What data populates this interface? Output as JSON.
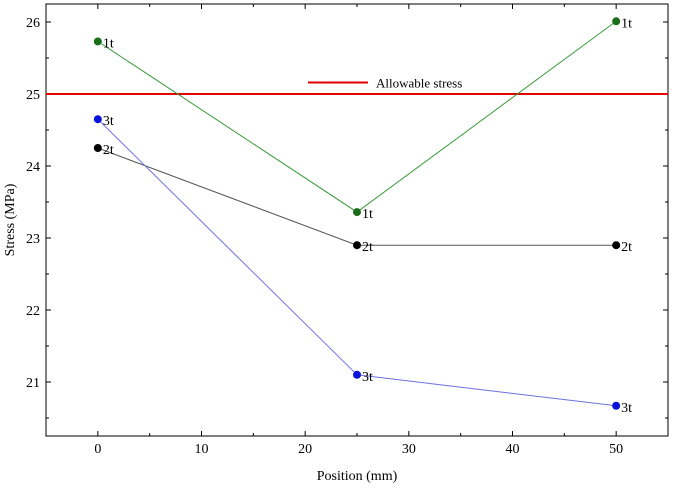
{
  "chart_data": {
    "type": "line",
    "title": "",
    "xlabel": "Position (mm)",
    "ylabel": "Stress (MPa)",
    "xlim": [
      -5,
      55
    ],
    "ylim": [
      20.25,
      26.25
    ],
    "x_ticks": [
      0,
      10,
      20,
      30,
      40,
      50
    ],
    "y_ticks": [
      21,
      22,
      23,
      24,
      25,
      26
    ],
    "grid": false,
    "series": [
      {
        "name": "1t",
        "color": "#3a9a3a",
        "marker_color": "#1a6e1a",
        "x": [
          0,
          25,
          50
        ],
        "y": [
          25.73,
          23.36,
          26.01
        ],
        "point_labels": [
          "1t",
          "1t",
          "1t"
        ]
      },
      {
        "name": "2t",
        "color": "#555555",
        "marker_color": "#000000",
        "x": [
          0,
          25,
          50
        ],
        "y": [
          24.25,
          22.9,
          22.9
        ],
        "point_labels": [
          "2t",
          "2t",
          "2t"
        ]
      },
      {
        "name": "3t",
        "color": "#6f6fe0",
        "marker_color": "#0a14d8",
        "x": [
          0,
          25,
          50
        ],
        "y": [
          24.65,
          21.1,
          20.67
        ],
        "point_labels": [
          "3t",
          "3t",
          "3t"
        ]
      }
    ],
    "reference_line": {
      "label": "Allowable stress",
      "y": 25,
      "color": "#e00000"
    },
    "legend_position": "top-center"
  }
}
